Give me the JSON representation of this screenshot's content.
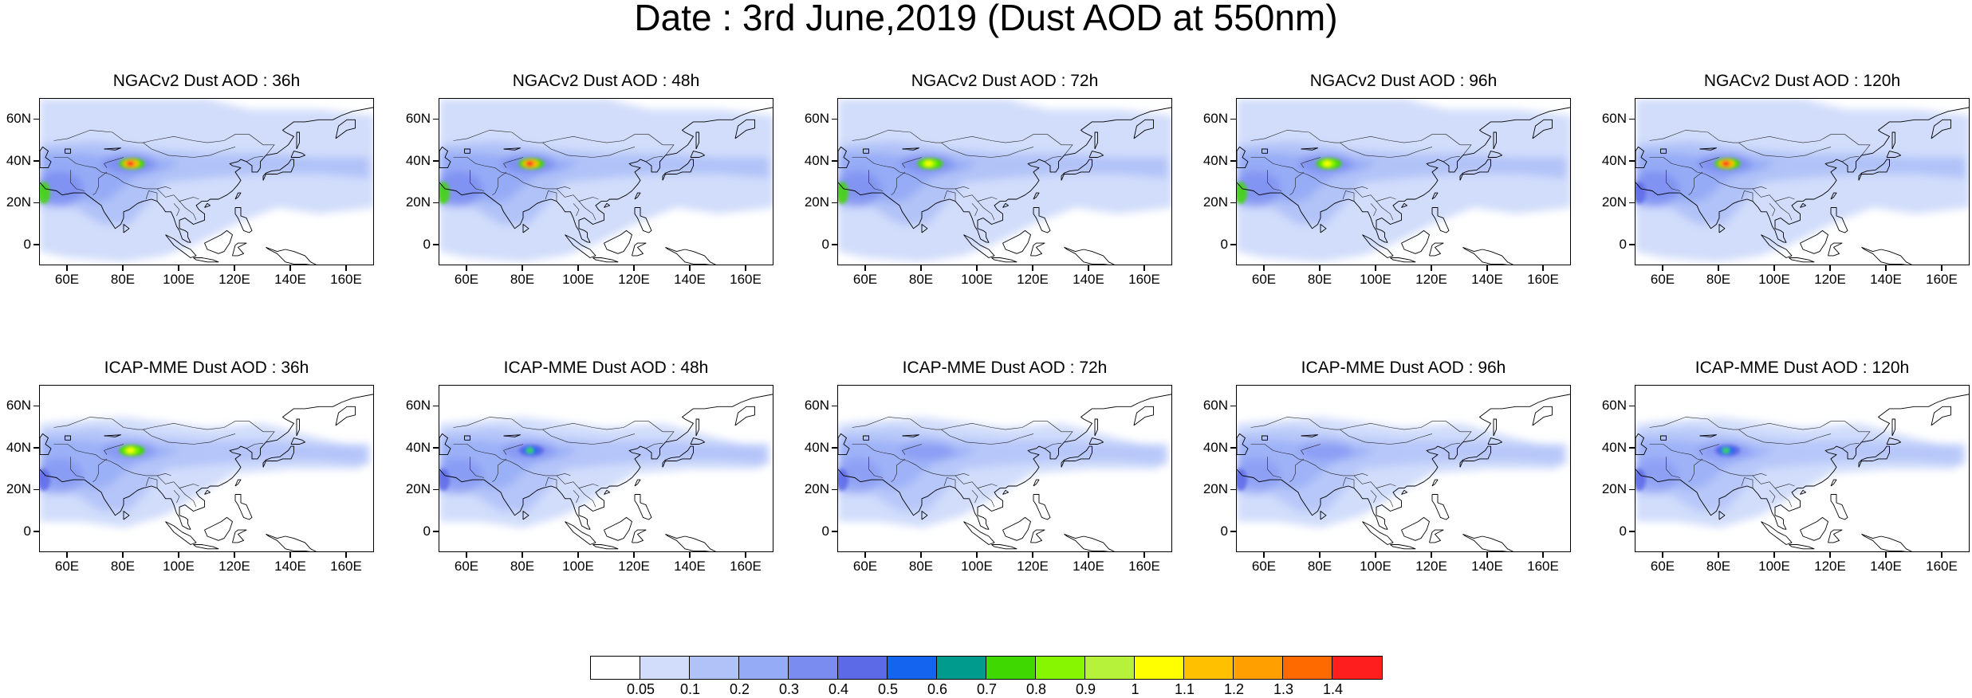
{
  "title": "Date : 3rd June,2019 (Dust AOD at 550nm)",
  "panels": [
    {
      "title": "NGACv2 Dust AOD : 36h",
      "hotspot": "red",
      "intensity": 1.0,
      "west": "green"
    },
    {
      "title": "NGACv2 Dust AOD : 48h",
      "hotspot": "red",
      "intensity": 1.0,
      "west": "green"
    },
    {
      "title": "NGACv2 Dust AOD : 72h",
      "hotspot": "yellow",
      "intensity": 0.95,
      "west": "green"
    },
    {
      "title": "NGACv2 Dust AOD : 96h",
      "hotspot": "yellow",
      "intensity": 0.95,
      "west": "green"
    },
    {
      "title": "NGACv2 Dust AOD : 120h",
      "hotspot": "red",
      "intensity": 1.0,
      "west": "blue"
    },
    {
      "title": "ICAP-MME Dust AOD : 36h",
      "hotspot": "yellow",
      "intensity": 0.7,
      "west": "blue"
    },
    {
      "title": "ICAP-MME Dust AOD : 48h",
      "hotspot": "green",
      "intensity": 0.7,
      "west": "blue"
    },
    {
      "title": "ICAP-MME Dust AOD : 72h",
      "hotspot": "none",
      "intensity": 0.6,
      "west": "blue"
    },
    {
      "title": "ICAP-MME Dust AOD : 96h",
      "hotspot": "none",
      "intensity": 0.6,
      "west": "blue"
    },
    {
      "title": "ICAP-MME Dust AOD : 120h",
      "hotspot": "green",
      "intensity": 0.6,
      "west": "blue"
    }
  ],
  "axes": {
    "lat_labels": [
      "60N",
      "40N",
      "20N",
      "0"
    ],
    "lon_labels": [
      "60E",
      "80E",
      "100E",
      "120E",
      "140E",
      "160E"
    ],
    "lat_values": [
      60,
      40,
      20,
      0
    ],
    "lon_values": [
      60,
      80,
      100,
      120,
      140,
      160
    ],
    "lat_range": [
      -10,
      70
    ],
    "lon_range": [
      50,
      170
    ]
  },
  "colorbar": {
    "labels": [
      "0.05",
      "0.1",
      "0.2",
      "0.3",
      "0.4",
      "0.5",
      "0.6",
      "0.7",
      "0.8",
      "0.9",
      "1",
      "1.1",
      "1.2",
      "1.3",
      "1.4"
    ],
    "colors": [
      "#ffffff",
      "#d1ddfb",
      "#b1c2f8",
      "#95abf6",
      "#7b8cf1",
      "#5d6ae8",
      "#1464f0",
      "#009b8c",
      "#3fd800",
      "#86f700",
      "#b6f23a",
      "#ffff00",
      "#ffc000",
      "#ff9f00",
      "#ff6a00",
      "#ff1e1e"
    ]
  }
}
